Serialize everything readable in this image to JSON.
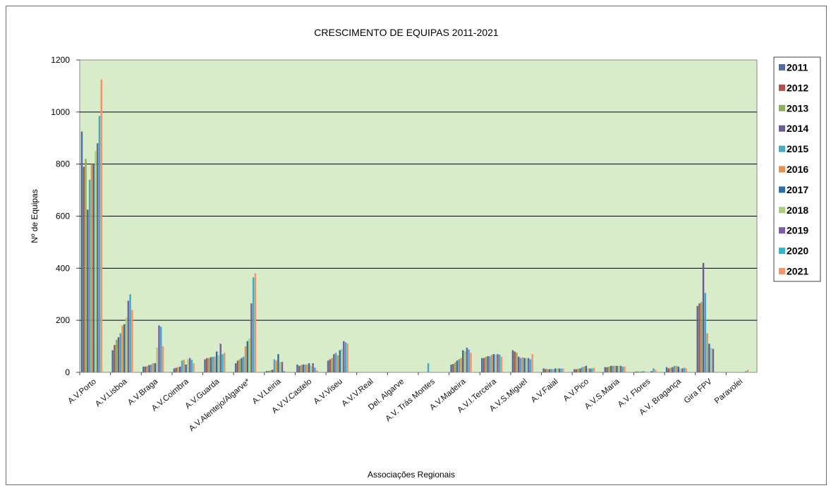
{
  "chart_data": {
    "type": "bar",
    "title": "CRESCIMENTO DE EQUIPAS 2011-2021",
    "xlabel": "Associações Regionais",
    "ylabel": "Nº de Equipas",
    "ylim": [
      0,
      1200
    ],
    "yticks": [
      0,
      200,
      400,
      600,
      800,
      1000,
      1200
    ],
    "grid": true,
    "legend_position": "right",
    "plot_background": "#d8ecca",
    "categories": [
      "A.V.Porto",
      "A.V.Lisboa",
      "A.V.Braga",
      "A.V.Coimbra",
      "A.V.Guarda",
      "A.V.Alentejo/Algarve*",
      "A.V.Leiria",
      "A.V.V.Castelo",
      "A.V.Viseu",
      "A.V.V.Real",
      "Del. Algarve",
      "A.V. Trás Montes",
      "A.V.Madeira",
      "A.V.I.Terceira",
      "A.V.S.Miguel",
      "A.V.Faial",
      "A.V.Pico",
      "A.V.S.Maria",
      "A.V. Flores",
      "A.V. Bragança",
      "Gira FPV",
      "Paravolei"
    ],
    "series": [
      {
        "name": "2011",
        "color": "#4a6fa5",
        "values": [
          925,
          85,
          22,
          15,
          50,
          35,
          5,
          30,
          45,
          0,
          0,
          0,
          30,
          55,
          85,
          15,
          12,
          20,
          3,
          20,
          255,
          0
        ]
      },
      {
        "name": "2012",
        "color": "#b0504b",
        "values": [
          790,
          105,
          22,
          18,
          55,
          45,
          5,
          25,
          50,
          0,
          0,
          0,
          32,
          55,
          80,
          13,
          12,
          20,
          3,
          15,
          265,
          0
        ]
      },
      {
        "name": "2013",
        "color": "#8ab05a",
        "values": [
          820,
          125,
          25,
          20,
          55,
          50,
          8,
          28,
          55,
          0,
          0,
          0,
          38,
          60,
          75,
          12,
          14,
          22,
          3,
          18,
          270,
          0
        ]
      },
      {
        "name": "2014",
        "color": "#6d5a94",
        "values": [
          625,
          135,
          28,
          22,
          58,
          55,
          10,
          30,
          70,
          0,
          0,
          0,
          45,
          62,
          60,
          12,
          15,
          25,
          3,
          20,
          420,
          0
        ]
      },
      {
        "name": "2015",
        "color": "#4aa9c2",
        "values": [
          740,
          150,
          30,
          45,
          60,
          60,
          50,
          30,
          75,
          0,
          0,
          35,
          50,
          62,
          55,
          13,
          20,
          25,
          5,
          25,
          305,
          0
        ]
      },
      {
        "name": "2016",
        "color": "#e2914e",
        "values": [
          800,
          180,
          35,
          48,
          60,
          100,
          45,
          30,
          65,
          0,
          0,
          0,
          55,
          68,
          58,
          12,
          22,
          25,
          0,
          25,
          150,
          0
        ]
      },
      {
        "name": "2017",
        "color": "#2e6ea8",
        "values": [
          800,
          185,
          35,
          30,
          80,
          120,
          70,
          35,
          85,
          0,
          0,
          0,
          85,
          70,
          55,
          15,
          25,
          25,
          0,
          22,
          110,
          0
        ]
      },
      {
        "name": "2018",
        "color": "#a9cf7a",
        "values": [
          850,
          210,
          95,
          50,
          65,
          130,
          40,
          25,
          90,
          0,
          0,
          0,
          80,
          68,
          55,
          15,
          15,
          25,
          0,
          15,
          95,
          0
        ]
      },
      {
        "name": "2019",
        "color": "#7c5ea8",
        "values": [
          880,
          275,
          180,
          55,
          110,
          265,
          40,
          35,
          120,
          0,
          0,
          0,
          95,
          70,
          55,
          15,
          15,
          25,
          5,
          15,
          90,
          0
        ]
      },
      {
        "name": "2020",
        "color": "#35b2cc",
        "values": [
          985,
          300,
          175,
          48,
          70,
          365,
          5,
          18,
          115,
          0,
          0,
          0,
          88,
          68,
          50,
          15,
          15,
          22,
          15,
          18,
          0,
          5
        ]
      },
      {
        "name": "2021",
        "color": "#f0956b",
        "values": [
          1125,
          240,
          100,
          35,
          75,
          380,
          0,
          8,
          110,
          0,
          0,
          0,
          75,
          60,
          70,
          15,
          18,
          22,
          10,
          15,
          0,
          10
        ]
      }
    ]
  },
  "legend_labels": [
    "2011",
    "2012",
    "2013",
    "2014",
    "2015",
    "2016",
    "2017",
    "2018",
    "2019",
    "2020",
    "2021"
  ]
}
